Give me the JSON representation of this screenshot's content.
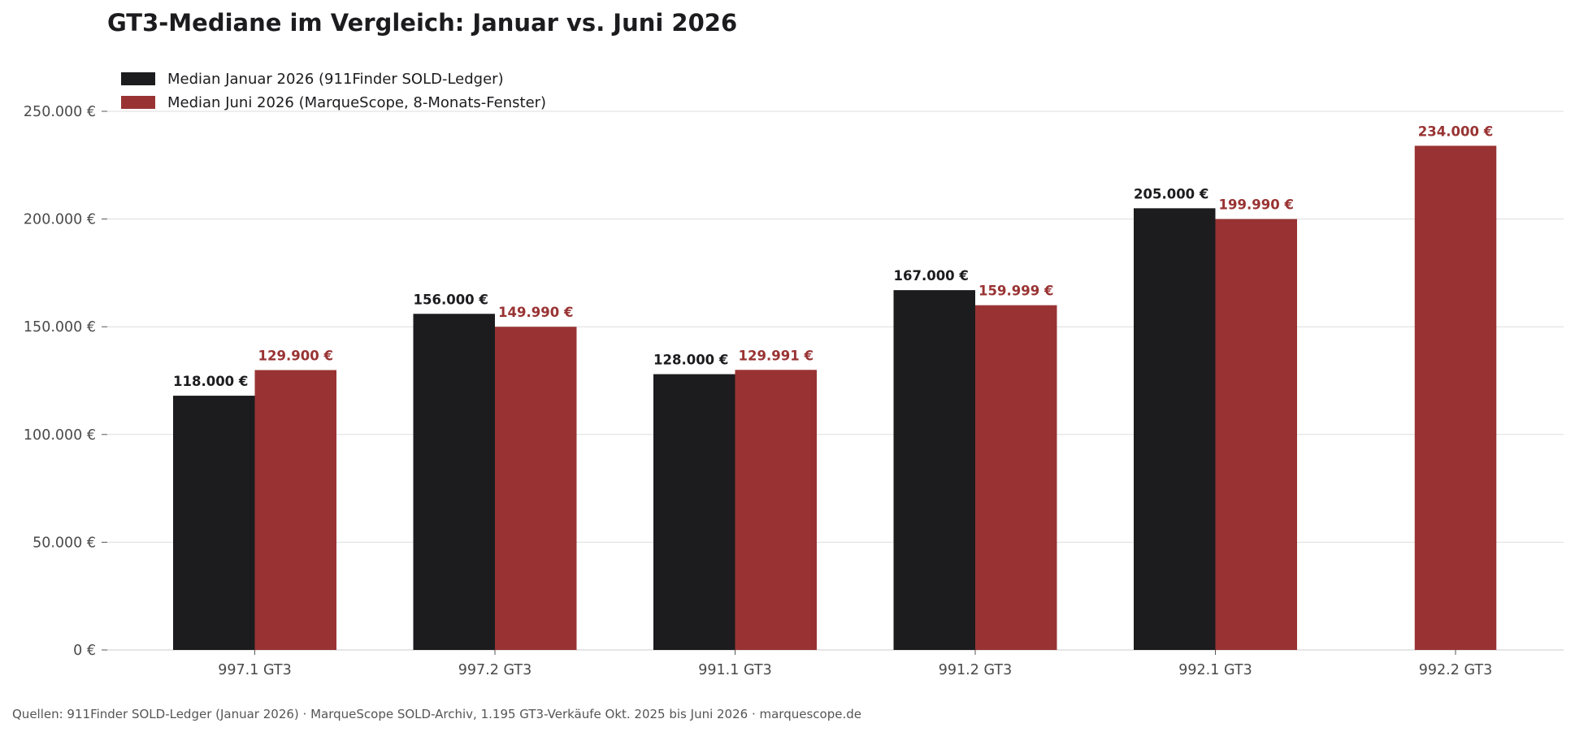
{
  "chart_data": {
    "type": "bar",
    "title": "GT3-Mediane im Vergleich: Januar vs. Juni 2026",
    "categories": [
      "997.1 GT3",
      "997.2 GT3",
      "991.1 GT3",
      "991.2 GT3",
      "992.1 GT3",
      "992.2 GT3"
    ],
    "series": [
      {
        "name": "Median Januar 2026 (911Finder SOLD-Ledger)",
        "color": "#1c1c1f",
        "values": [
          118000,
          156000,
          128000,
          167000,
          205000,
          null
        ],
        "labels": [
          "118.000 €",
          "156.000 €",
          "128.000 €",
          "167.000 €",
          "205.000 €",
          ""
        ]
      },
      {
        "name": "Median Juni 2026 (MarqueScope, 8-Monats-Fenster)",
        "color": "#993333",
        "values": [
          129900,
          149990,
          129991,
          159999,
          199990,
          234000
        ],
        "labels": [
          "129.900 €",
          "149.990 €",
          "129.991 €",
          "159.999 €",
          "199.990 €",
          "234.000 €"
        ]
      }
    ],
    "ylim": [
      0,
      250000
    ],
    "yticks": [
      0,
      50000,
      100000,
      150000,
      200000,
      250000
    ],
    "ytick_labels": [
      "0 €",
      "50.000 €",
      "100.000 €",
      "150.000 €",
      "200.000 €",
      "250.000 €"
    ],
    "grid": "horizontal",
    "legend_position": "top-left",
    "source": "Quellen: 911Finder SOLD-Ledger (Januar 2026) · MarqueScope SOLD-Archiv, 1.195 GT3-Verkäufe Okt. 2025 bis Juni 2026 · marquescope.de"
  }
}
